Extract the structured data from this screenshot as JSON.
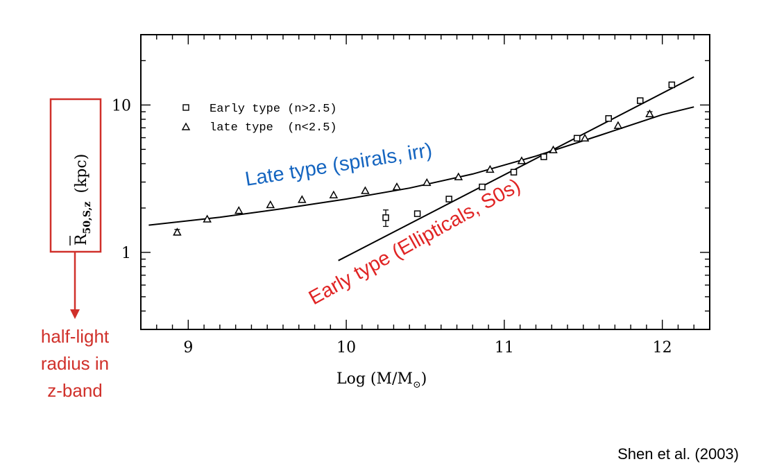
{
  "chart_data": {
    "type": "scatter",
    "xlabel": "Log (M/M",
    "xlabel_sub": "⊙",
    "xlabel_close": ")",
    "ylabel": "R",
    "ylabel_sub": "50,S,z",
    "ylabel_unit": "(kpc)",
    "xlim": [
      8.7,
      12.3
    ],
    "ylim": [
      0.3,
      30
    ],
    "yscale": "log",
    "x_ticks": [
      9,
      10,
      11,
      12
    ],
    "x_tick_labels": [
      "9",
      "10",
      "11",
      "12"
    ],
    "y_ticks": [
      1,
      10
    ],
    "y_tick_labels": [
      "1",
      "10"
    ],
    "legend": {
      "position": "top-left",
      "entries": [
        {
          "marker": "square",
          "label": "Early type (n>2.5)"
        },
        {
          "marker": "triangle",
          "label": "late type  (n<2.5)"
        }
      ]
    },
    "series": [
      {
        "name": "Early type (n>2.5)",
        "marker": "square",
        "x": [
          10.25,
          10.45,
          10.65,
          10.86,
          11.06,
          11.25,
          11.46,
          11.66,
          11.86,
          12.06
        ],
        "y": [
          1.72,
          1.83,
          2.3,
          2.78,
          3.5,
          4.45,
          5.95,
          8.1,
          10.7,
          13.7
        ],
        "err": [
          0.22,
          0.06,
          0.08,
          0.08,
          0.1,
          0.14,
          0.15,
          0.25,
          0.35,
          0.4
        ]
      },
      {
        "name": "late type  (n<2.5)",
        "marker": "triangle",
        "x": [
          8.93,
          9.12,
          9.32,
          9.52,
          9.72,
          9.92,
          10.12,
          10.32,
          10.51,
          10.71,
          10.91,
          11.11,
          11.31,
          11.51,
          11.72,
          11.92
        ],
        "y": [
          1.37,
          1.68,
          1.92,
          2.1,
          2.28,
          2.45,
          2.62,
          2.78,
          2.97,
          3.25,
          3.65,
          4.18,
          4.95,
          5.95,
          7.25,
          8.7
        ],
        "err": [
          0.06,
          0.05,
          0.05,
          0.05,
          0.06,
          0.06,
          0.06,
          0.06,
          0.06,
          0.07,
          0.08,
          0.1,
          0.12,
          0.16,
          0.2,
          0.3
        ]
      }
    ],
    "fit_lines": [
      {
        "name": "late-type-fit",
        "x": [
          8.75,
          9.2,
          9.6,
          10.0,
          10.4,
          10.8,
          11.2,
          11.6,
          12.0,
          12.2
        ],
        "y": [
          1.53,
          1.73,
          1.98,
          2.3,
          2.73,
          3.4,
          4.5,
          6.2,
          8.6,
          9.7
        ]
      },
      {
        "name": "early-type-fit",
        "x": [
          9.95,
          12.2
        ],
        "y": [
          0.88,
          15.5
        ]
      }
    ],
    "annotations": [
      {
        "text": "Late type (spirals, irr)",
        "color": "#1565c0"
      },
      {
        "text": "Early type (Ellipticals, S0s)",
        "color": "#e02424"
      }
    ]
  },
  "callout": {
    "text_lines": [
      "half-light",
      "radius in",
      "z-band"
    ],
    "color": "#d0302a"
  },
  "citation": "Shen et al. (2003)"
}
